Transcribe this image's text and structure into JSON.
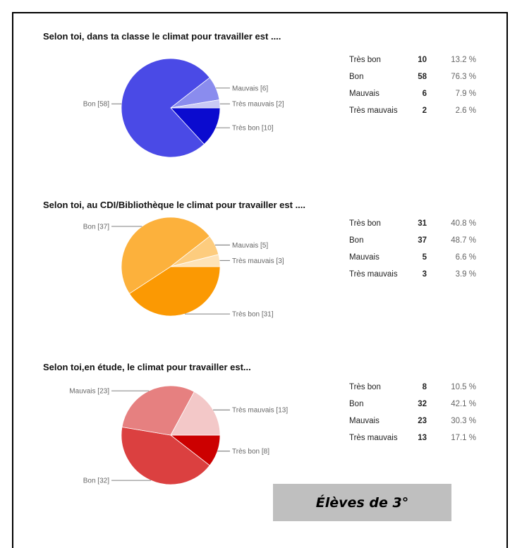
{
  "badge_label": "Élèves de 3°",
  "chart_data": [
    {
      "type": "pie",
      "title": "Selon toi, dans ta classe le climat pour travailler est ....",
      "slices": [
        {
          "label": "Très bon",
          "slice_label": "Très bon [10]",
          "count": 10,
          "percent": "13.2 %",
          "color": "#0b0bcf"
        },
        {
          "label": "Bon",
          "slice_label": "Bon [58]",
          "count": 58,
          "percent": "76.3 %",
          "color": "#4a4ae6"
        },
        {
          "label": "Mauvais",
          "slice_label": "Mauvais [6]",
          "count": 6,
          "percent": "7.9 %",
          "color": "#8a8cee"
        },
        {
          "label": "Très mauvais",
          "slice_label": "Très mauvais [2]",
          "count": 2,
          "percent": "2.6 %",
          "color": "#c9c9f5"
        }
      ]
    },
    {
      "type": "pie",
      "title": "Selon toi, au CDI/Bibliothèque le climat pour travailler est ....",
      "slices": [
        {
          "label": "Très bon",
          "slice_label": "Très bon [31]",
          "count": 31,
          "percent": "40.8 %",
          "color": "#fb9903"
        },
        {
          "label": "Bon",
          "slice_label": "Bon [37]",
          "count": 37,
          "percent": "48.7 %",
          "color": "#fcb13c"
        },
        {
          "label": "Mauvais",
          "slice_label": "Mauvais [5]",
          "count": 5,
          "percent": "6.6 %",
          "color": "#fdcc7e"
        },
        {
          "label": "Très mauvais",
          "slice_label": "Très mauvais [3]",
          "count": 3,
          "percent": "3.9 %",
          "color": "#fee3b8"
        }
      ]
    },
    {
      "type": "pie",
      "title": "Selon toi,en étude, le climat pour travailler est...",
      "slices": [
        {
          "label": "Très bon",
          "slice_label": "Très bon [8]",
          "count": 8,
          "percent": "10.5 %",
          "color": "#cc0000"
        },
        {
          "label": "Bon",
          "slice_label": "Bon [32]",
          "count": 32,
          "percent": "42.1 %",
          "color": "#db4040"
        },
        {
          "label": "Mauvais",
          "slice_label": "Mauvais [23]",
          "count": 23,
          "percent": "30.3 %",
          "color": "#e68080"
        },
        {
          "label": "Très mauvais",
          "slice_label": "Très mauvais [13]",
          "count": 13,
          "percent": "17.1 %",
          "color": "#f3c8c8"
        }
      ]
    }
  ]
}
